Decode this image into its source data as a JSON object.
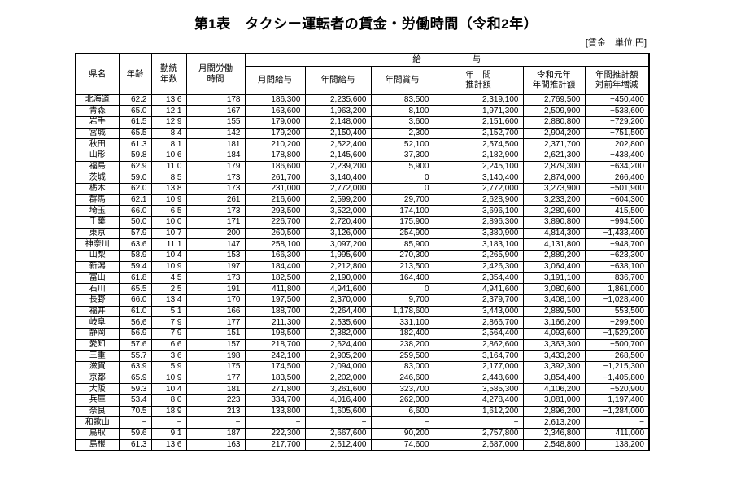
{
  "title": "第1表　タクシー運転者の賃金・労働時間（令和2年）",
  "unit_note": "[賃金　単位:円]",
  "table": {
    "headers": {
      "prefecture": "県名",
      "age": "年齢",
      "tenure": "勤続\n年数",
      "monthly_hours": "月間労働\n時間",
      "salary_group": "給　　　　　　与",
      "monthly_salary": "月間給与",
      "annual_salary": "年間給与",
      "annual_bonus": "年間賞与",
      "annual_estimate": "年　間\n推計額",
      "prev_year_estimate": "令和元年\n年間推計額",
      "yoy_change": "年間推計額\n対前年増減"
    },
    "rows": [
      [
        "北海道",
        "62.2",
        "13.6",
        "178",
        "186,300",
        "2,235,600",
        "83,500",
        "2,319,100",
        "2,769,500",
        "−450,400"
      ],
      [
        "青森",
        "65.0",
        "12.1",
        "167",
        "163,600",
        "1,963,200",
        "8,100",
        "1,971,300",
        "2,509,900",
        "−538,600"
      ],
      [
        "岩手",
        "61.5",
        "12.9",
        "155",
        "179,000",
        "2,148,000",
        "3,600",
        "2,151,600",
        "2,880,800",
        "−729,200"
      ],
      [
        "宮城",
        "65.5",
        "8.4",
        "142",
        "179,200",
        "2,150,400",
        "2,300",
        "2,152,700",
        "2,904,200",
        "−751,500"
      ],
      [
        "秋田",
        "61.3",
        "8.1",
        "181",
        "210,200",
        "2,522,400",
        "52,100",
        "2,574,500",
        "2,371,700",
        "202,800"
      ],
      [
        "山形",
        "59.8",
        "10.6",
        "184",
        "178,800",
        "2,145,600",
        "37,300",
        "2,182,900",
        "2,621,300",
        "−438,400"
      ],
      [
        "福島",
        "62.9",
        "11.0",
        "179",
        "186,600",
        "2,239,200",
        "5,900",
        "2,245,100",
        "2,879,300",
        "−634,200"
      ],
      [
        "茨城",
        "59.0",
        "8.5",
        "173",
        "261,700",
        "3,140,400",
        "0",
        "3,140,400",
        "2,874,000",
        "266,400"
      ],
      [
        "栃木",
        "62.0",
        "13.8",
        "173",
        "231,000",
        "2,772,000",
        "0",
        "2,772,000",
        "3,273,900",
        "−501,900"
      ],
      [
        "群馬",
        "62.1",
        "10.9",
        "261",
        "216,600",
        "2,599,200",
        "29,700",
        "2,628,900",
        "3,233,200",
        "−604,300"
      ],
      [
        "埼玉",
        "66.0",
        "6.5",
        "173",
        "293,500",
        "3,522,000",
        "174,100",
        "3,696,100",
        "3,280,600",
        "415,500"
      ],
      [
        "千葉",
        "50.0",
        "10.0",
        "171",
        "226,700",
        "2,720,400",
        "175,900",
        "2,896,300",
        "3,890,800",
        "−994,500"
      ],
      [
        "東京",
        "57.9",
        "10.7",
        "200",
        "260,500",
        "3,126,000",
        "254,900",
        "3,380,900",
        "4,814,300",
        "−1,433,400"
      ],
      [
        "神奈川",
        "63.6",
        "11.1",
        "147",
        "258,100",
        "3,097,200",
        "85,900",
        "3,183,100",
        "4,131,800",
        "−948,700"
      ],
      [
        "山梨",
        "58.9",
        "10.4",
        "153",
        "166,300",
        "1,995,600",
        "270,300",
        "2,265,900",
        "2,889,200",
        "−623,300"
      ],
      [
        "新潟",
        "59.4",
        "10.9",
        "197",
        "184,400",
        "2,212,800",
        "213,500",
        "2,426,300",
        "3,064,400",
        "−638,100"
      ],
      [
        "富山",
        "61.8",
        "4.5",
        "173",
        "182,500",
        "2,190,000",
        "164,400",
        "2,354,400",
        "3,191,100",
        "−836,700"
      ],
      [
        "石川",
        "65.5",
        "2.5",
        "191",
        "411,800",
        "4,941,600",
        "0",
        "4,941,600",
        "3,080,600",
        "1,861,000"
      ],
      [
        "長野",
        "66.0",
        "13.4",
        "170",
        "197,500",
        "2,370,000",
        "9,700",
        "2,379,700",
        "3,408,100",
        "−1,028,400"
      ],
      [
        "福井",
        "61.0",
        "5.1",
        "166",
        "188,700",
        "2,264,400",
        "1,178,600",
        "3,443,000",
        "2,889,500",
        "553,500"
      ],
      [
        "岐阜",
        "56.6",
        "7.9",
        "177",
        "211,300",
        "2,535,600",
        "331,100",
        "2,866,700",
        "3,166,200",
        "−299,500"
      ],
      [
        "静岡",
        "56.9",
        "7.9",
        "151",
        "198,500",
        "2,382,000",
        "182,400",
        "2,564,400",
        "4,093,600",
        "−1,529,200"
      ],
      [
        "愛知",
        "57.6",
        "6.6",
        "157",
        "218,700",
        "2,624,400",
        "238,200",
        "2,862,600",
        "3,363,300",
        "−500,700"
      ],
      [
        "三重",
        "55.7",
        "3.6",
        "198",
        "242,100",
        "2,905,200",
        "259,500",
        "3,164,700",
        "3,433,200",
        "−268,500"
      ],
      [
        "滋賀",
        "63.9",
        "5.9",
        "175",
        "174,500",
        "2,094,000",
        "83,000",
        "2,177,000",
        "3,392,300",
        "−1,215,300"
      ],
      [
        "京都",
        "65.9",
        "10.9",
        "177",
        "183,500",
        "2,202,000",
        "246,600",
        "2,448,600",
        "3,854,400",
        "−1,405,800"
      ],
      [
        "大阪",
        "59.3",
        "10.4",
        "181",
        "271,800",
        "3,261,600",
        "323,700",
        "3,585,300",
        "4,106,200",
        "−520,900"
      ],
      [
        "兵庫",
        "53.4",
        "8.0",
        "223",
        "334,700",
        "4,016,400",
        "262,000",
        "4,278,400",
        "3,081,000",
        "1,197,400"
      ],
      [
        "奈良",
        "70.5",
        "18.9",
        "213",
        "133,800",
        "1,605,600",
        "6,600",
        "1,612,200",
        "2,896,200",
        "−1,284,000"
      ],
      [
        "和歌山",
        "−",
        "−",
        "−",
        "−",
        "−",
        "−",
        "−",
        "2,613,200",
        "−"
      ],
      [
        "鳥取",
        "59.6",
        "9.1",
        "187",
        "222,300",
        "2,667,600",
        "90,200",
        "2,757,800",
        "2,346,800",
        "411,000"
      ],
      [
        "島根",
        "61.3",
        "13.6",
        "163",
        "217,700",
        "2,612,400",
        "74,600",
        "2,687,000",
        "2,548,800",
        "138,200"
      ]
    ]
  }
}
